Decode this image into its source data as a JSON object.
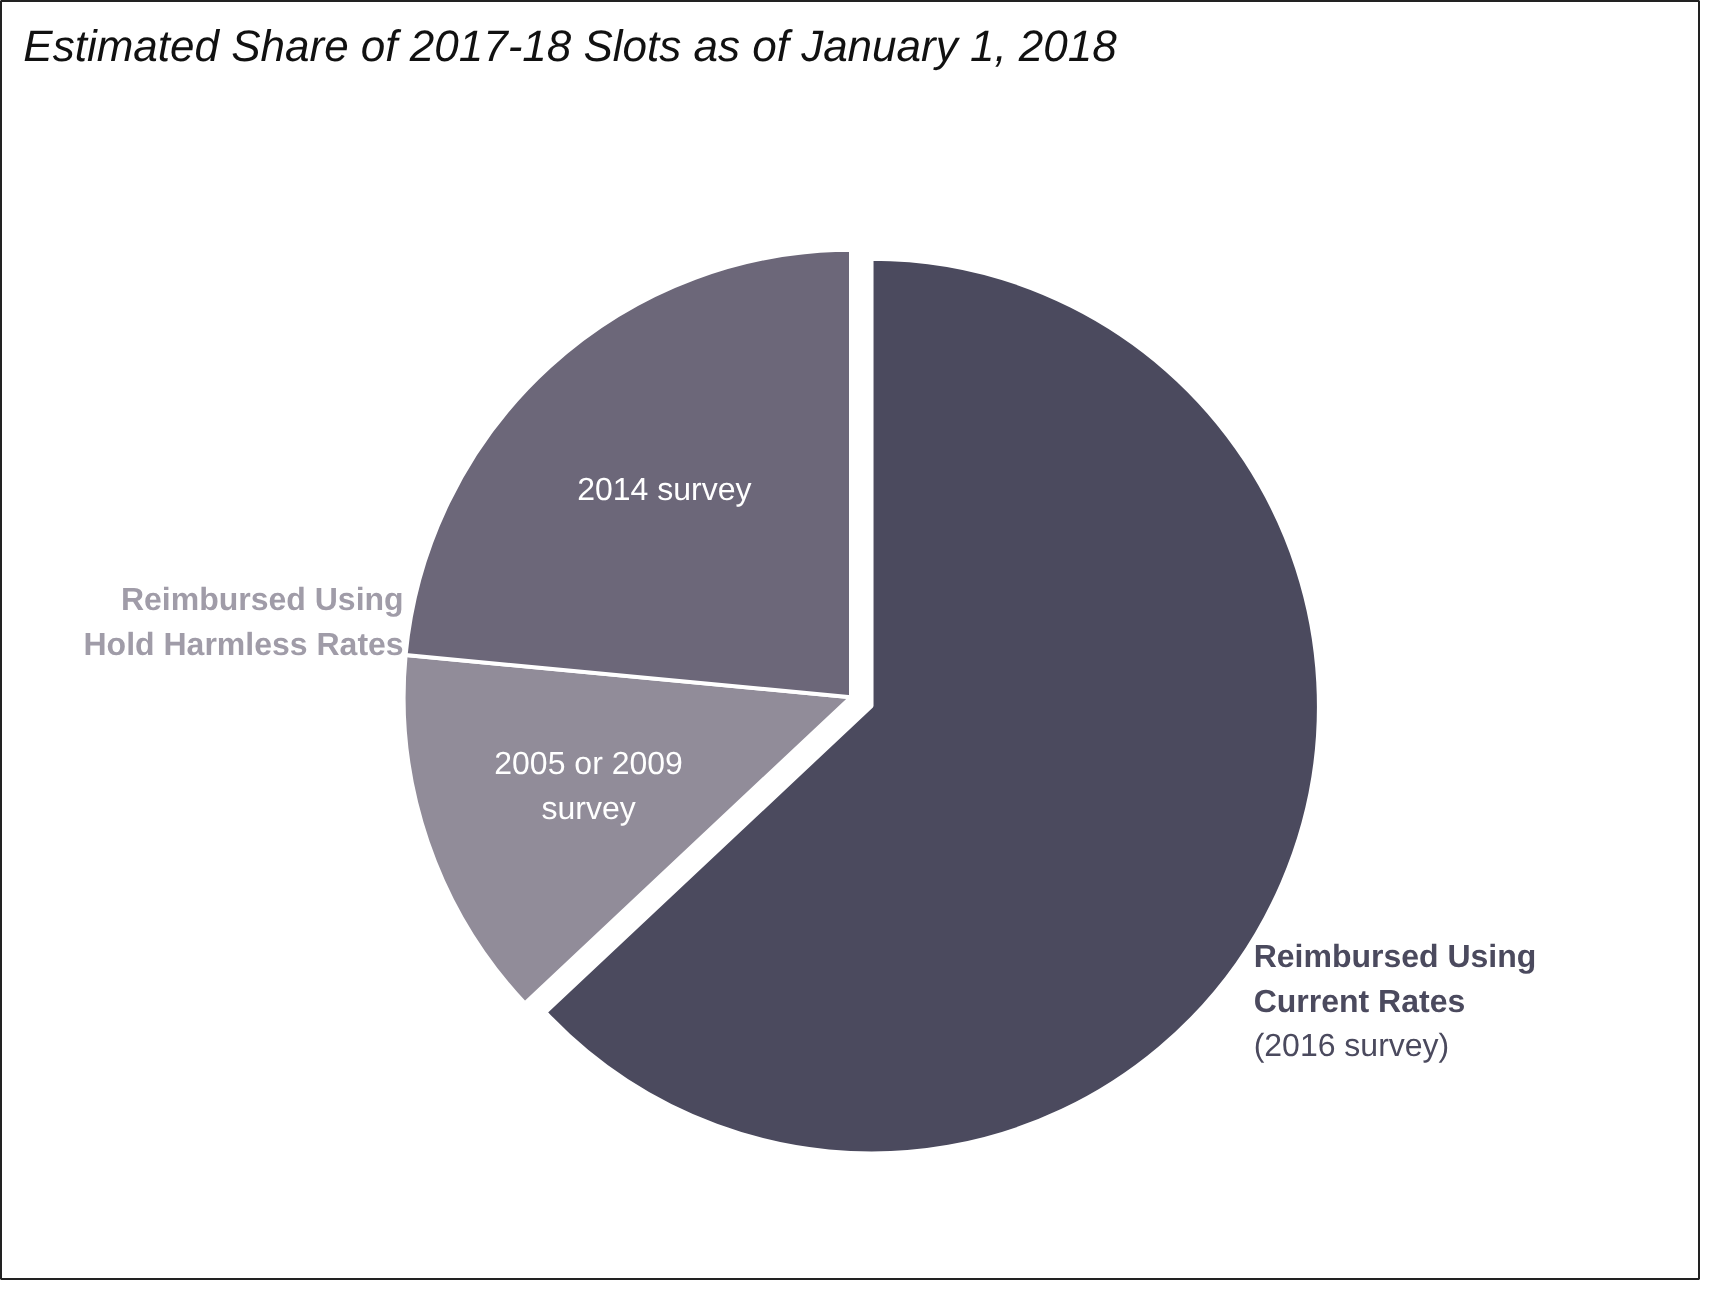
{
  "chart_data": {
    "type": "pie",
    "title": "Estimated Share of 2017-18 Slots as of January 1, 2018",
    "categories": [
      "Reimbursed Using Current Rates (2016 survey)",
      "2005 or 2009 survey",
      "2014 survey"
    ],
    "values": [
      63,
      13.5,
      23.5
    ],
    "colors": [
      "#4b4a5e",
      "#918c99",
      "#6c6779"
    ],
    "annotations": [
      "Reimbursed Using Hold Harmless Rates"
    ]
  }
}
